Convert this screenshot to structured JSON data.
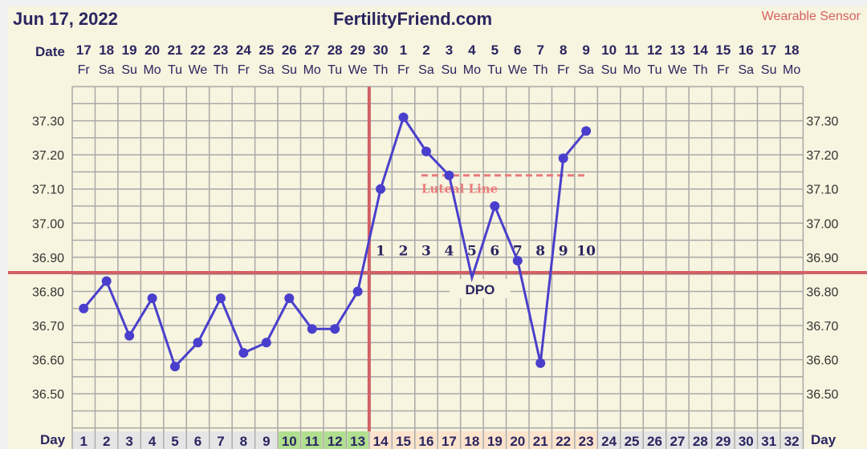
{
  "header": {
    "date": "Jun 17, 2022",
    "site": "FertilityFriend.com",
    "sensor": "Wearable Sensor"
  },
  "colors": {
    "line": "#4a3fcc",
    "coverline": "#d16064",
    "luteal": "#ea7b7b",
    "fertile": "#b0e08f",
    "luteal_phase": "#fce3cb",
    "day_default": "#e5e5e5",
    "bg": "#f7f4df",
    "text": "#2a2560"
  },
  "chart_data": {
    "type": "line",
    "date_label": "Date",
    "day_label": "Day",
    "dates": [
      "17",
      "18",
      "19",
      "20",
      "21",
      "22",
      "23",
      "24",
      "25",
      "26",
      "27",
      "28",
      "29",
      "30",
      "1",
      "2",
      "3",
      "4",
      "5",
      "6",
      "7",
      "8",
      "9",
      "10",
      "11",
      "12",
      "13",
      "14",
      "15",
      "16",
      "17",
      "18"
    ],
    "weekdays": [
      "Fr",
      "Sa",
      "Su",
      "Mo",
      "Tu",
      "We",
      "Th",
      "Fr",
      "Sa",
      "Su",
      "Mo",
      "Tu",
      "We",
      "Th",
      "Fr",
      "Sa",
      "Su",
      "Mo",
      "Tu",
      "We",
      "Th",
      "Fr",
      "Sa",
      "Su",
      "Mo",
      "Tu",
      "We",
      "Th",
      "Fr",
      "Sa",
      "Su",
      "Mo"
    ],
    "days": [
      1,
      2,
      3,
      4,
      5,
      6,
      7,
      8,
      9,
      10,
      11,
      12,
      13,
      14,
      15,
      16,
      17,
      18,
      19,
      20,
      21,
      22,
      23,
      24,
      25,
      26,
      27,
      28,
      29,
      30,
      31,
      32
    ],
    "temps": [
      36.75,
      36.83,
      36.67,
      36.78,
      36.58,
      36.65,
      36.78,
      36.62,
      36.65,
      36.78,
      36.69,
      36.69,
      36.8,
      37.1,
      37.31,
      37.21,
      37.14,
      36.84,
      37.05,
      36.89,
      36.59,
      37.19,
      37.27
    ],
    "hidden_marker_days": [
      18
    ],
    "y_ticks": [
      "37.30",
      "37.20",
      "37.10",
      "37.00",
      "36.90",
      "36.80",
      "36.70",
      "36.60",
      "36.50"
    ],
    "ylim": [
      36.39,
      37.4
    ],
    "fertile_days": [
      10,
      11,
      12,
      13
    ],
    "luteal_days": [
      14,
      15,
      16,
      17,
      18,
      19,
      20,
      21,
      22,
      23
    ],
    "ovulation_after_day": 13,
    "coverline": 36.855,
    "luteal_line": {
      "value": 37.14,
      "from_day": 16,
      "to_day": 23,
      "label": "Luteal Line"
    },
    "dpo_labels": [
      "1",
      "2",
      "3",
      "4",
      "5",
      "6",
      "7",
      "8",
      "9",
      "10"
    ],
    "dpo_text": "DPO",
    "dpo_level": 36.92
  }
}
